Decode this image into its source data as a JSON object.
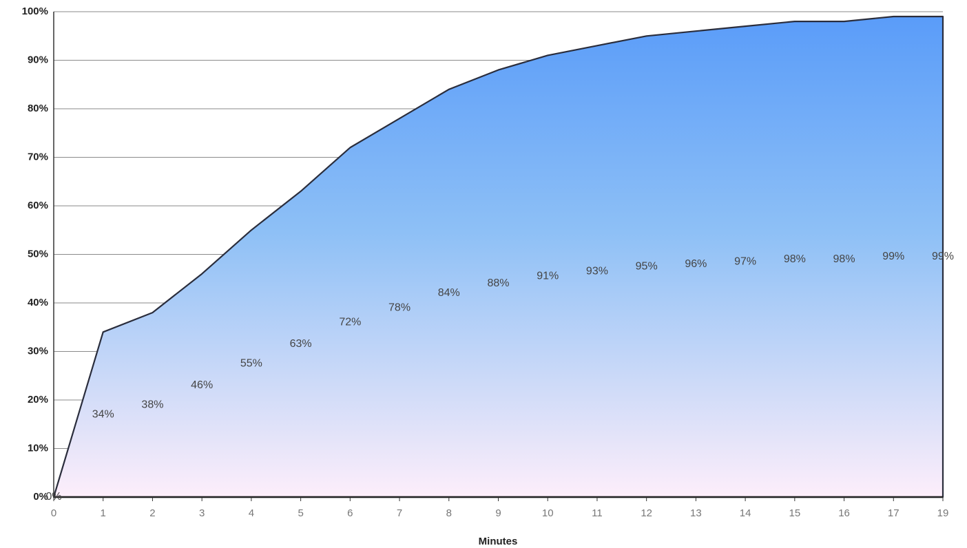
{
  "chart_data": {
    "type": "area",
    "x_label": "Minutes",
    "categories": [
      "0",
      "1",
      "2",
      "3",
      "4",
      "5",
      "6",
      "7",
      "8",
      "9",
      "10",
      "11",
      "12",
      "13",
      "14",
      "15",
      "16",
      "17",
      "19"
    ],
    "values": [
      0,
      34,
      38,
      46,
      55,
      63,
      72,
      78,
      84,
      88,
      91,
      93,
      95,
      96,
      97,
      98,
      98,
      99,
      99
    ],
    "value_labels": [
      "0%",
      "34%",
      "38%",
      "46%",
      "55%",
      "63%",
      "72%",
      "78%",
      "84%",
      "88%",
      "91%",
      "93%",
      "95%",
      "96%",
      "97%",
      "98%",
      "98%",
      "99%",
      "99%"
    ],
    "ylim": [
      0,
      100
    ],
    "yticks": [
      {
        "value": 0,
        "label": "0%"
      },
      {
        "value": 10,
        "label": "10%"
      },
      {
        "value": 20,
        "label": "20%"
      },
      {
        "value": 30,
        "label": "30%"
      },
      {
        "value": 40,
        "label": "40%"
      },
      {
        "value": 50,
        "label": "50%"
      },
      {
        "value": 60,
        "label": "60%"
      },
      {
        "value": 70,
        "label": "70%"
      },
      {
        "value": 80,
        "label": "80%"
      },
      {
        "value": 90,
        "label": "90%"
      },
      {
        "value": 100,
        "label": "100%"
      }
    ],
    "grid": true,
    "color": "#5b9ef9"
  }
}
